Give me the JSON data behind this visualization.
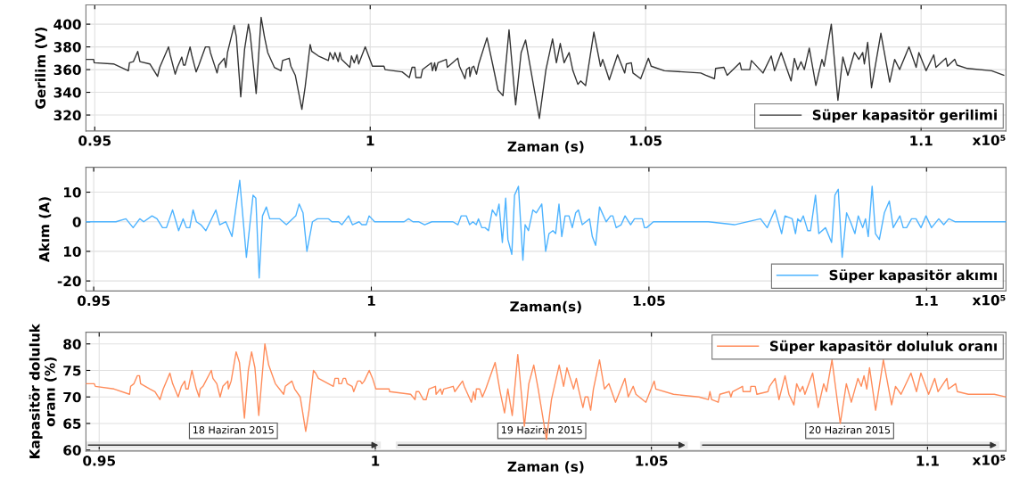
{
  "chart_data": [
    {
      "type": "line",
      "xlabel": "Zaman (s)",
      "ylabel": "Gerilim (V)",
      "xlim": [
        0.9484,
        1.1154
      ],
      "ylim": [
        306,
        417
      ],
      "xticks": [
        0.95,
        1,
        1.05,
        1.1
      ],
      "yticks": [
        320,
        340,
        360,
        380,
        400
      ],
      "grid": true,
      "legend": "bottom right",
      "annotations": [
        "x10⁵"
      ],
      "x": [
        0.9484,
        0.9498,
        0.9499,
        0.9534,
        0.9561,
        0.9563,
        0.957,
        0.9578,
        0.9582,
        0.96,
        0.9614,
        0.9618,
        0.9634,
        0.9637,
        0.9646,
        0.965,
        0.9658,
        0.9661,
        0.9664,
        0.9673,
        0.9676,
        0.9684,
        0.9689,
        0.9701,
        0.9708,
        0.971,
        0.9722,
        0.9725,
        0.9735,
        0.9738,
        0.9741,
        0.9753,
        0.9757,
        0.9765,
        0.9772,
        0.9779,
        0.9782,
        0.9793,
        0.9802,
        0.9808,
        0.9814,
        0.9826,
        0.9838,
        0.9841,
        0.9853,
        0.9856,
        0.9864,
        0.9876,
        0.9882,
        0.9891,
        0.9894,
        0.9906,
        0.9924,
        0.9927,
        0.9933,
        0.9936,
        0.9942,
        0.9945,
        0.9948,
        0.9963,
        0.9966,
        0.9971,
        0.9976,
        0.9979,
        0.9991,
        1.0004,
        1.0025,
        1.0027,
        1.0058,
        1.0071,
        1.0076,
        1.0081,
        1.0083,
        1.0092,
        1.0095,
        1.0111,
        1.0113,
        1.0117,
        1.0119,
        1.0123,
        1.0138,
        1.014,
        1.0159,
        1.0162,
        1.0172,
        1.0175,
        1.018,
        1.0181,
        1.0185,
        1.0188,
        1.0193,
        1.0197,
        1.0212,
        1.0223,
        1.0232,
        1.0241,
        1.0252,
        1.0264,
        1.0274,
        1.0282,
        1.0307,
        1.0319,
        1.0331,
        1.0338,
        1.0345,
        1.0352,
        1.0361,
        1.0368,
        1.0377,
        1.0382,
        1.0391,
        1.0406,
        1.0412,
        1.0418,
        1.0422,
        1.0428,
        1.0434,
        1.0449,
        1.0462,
        1.0465,
        1.0474,
        1.0477,
        1.0491,
        1.0505,
        1.051,
        1.0534,
        1.06,
        1.0609,
        1.0625,
        1.0627,
        1.0642,
        1.0648,
        1.0671,
        1.0674,
        1.0689,
        1.0692,
        1.0713,
        1.0728,
        1.0734,
        1.0746,
        1.0764,
        1.077,
        1.0776,
        1.0782,
        1.0788,
        1.0797,
        1.0809,
        1.082,
        1.0824,
        1.0837,
        1.0849,
        1.0858,
        1.0867,
        1.0879,
        1.0887,
        1.0894,
        1.0897,
        1.0903,
        1.091,
        1.0927,
        1.0943,
        1.0952,
        1.0961,
        1.0978,
        1.0991,
        1.0996,
        1.1009,
        1.1023,
        1.1027,
        1.1045,
        1.1048,
        1.1061,
        1.1065,
        1.1084,
        1.1128,
        1.115
      ],
      "series": [
        {
          "name": "Süper kapasitör gerilimi",
          "color": "#333333",
          "values": [
            369,
            369,
            366,
            365,
            359,
            366,
            367,
            376,
            367,
            365,
            354,
            362,
            380,
            373,
            356,
            362,
            371,
            364,
            364,
            380,
            373,
            358,
            364,
            380,
            380,
            375,
            357,
            364,
            370,
            362,
            375,
            399,
            389,
            336,
            378,
            400,
            392,
            339,
            406,
            389,
            375,
            362,
            359,
            368,
            370,
            363,
            355,
            325,
            345,
            382,
            376,
            372,
            368,
            375,
            369,
            375,
            367,
            375,
            369,
            362,
            372,
            366,
            373,
            365,
            380,
            363,
            363,
            360,
            358,
            353,
            362,
            362,
            353,
            353,
            360,
            366,
            359,
            366,
            359,
            366,
            369,
            362,
            370,
            363,
            352,
            360,
            362,
            354,
            362,
            363,
            356,
            365,
            388,
            363,
            342,
            337,
            395,
            329,
            375,
            386,
            317,
            360,
            387,
            366,
            383,
            366,
            375,
            359,
            347,
            350,
            346,
            393,
            378,
            363,
            369,
            360,
            351,
            373,
            357,
            365,
            366,
            357,
            352,
            370,
            363,
            359,
            357,
            355,
            352,
            361,
            362,
            355,
            366,
            360,
            360,
            368,
            357,
            372,
            359,
            375,
            350,
            370,
            360,
            367,
            360,
            379,
            346,
            369,
            363,
            400,
            333,
            371,
            355,
            375,
            369,
            375,
            365,
            384,
            344,
            392,
            349,
            369,
            360,
            380,
            362,
            375,
            359,
            373,
            362,
            370,
            363,
            369,
            364,
            361,
            359,
            355
          ]
        }
      ]
    },
    {
      "type": "line",
      "xlabel": "Zaman(s)",
      "ylabel": "Akım (A)",
      "xlim": [
        0.9486,
        1.1143
      ],
      "ylim": [
        -23.4,
        18.4
      ],
      "xticks": [
        0.95,
        1,
        1.05,
        1.1
      ],
      "yticks": [
        {
          "value": -20,
          "label": "-20"
        },
        {
          "value": -10,
          "label": "10"
        },
        0,
        10
      ],
      "grid": true,
      "legend": "bottom right",
      "annotations": [
        "x10⁵"
      ],
      "x": [
        0.9486,
        0.9528,
        0.954,
        0.9558,
        0.9571,
        0.9583,
        0.959,
        0.9605,
        0.9614,
        0.9624,
        0.9631,
        0.9642,
        0.9653,
        0.9661,
        0.9667,
        0.9673,
        0.9679,
        0.9685,
        0.9693,
        0.9702,
        0.972,
        0.9727,
        0.9738,
        0.9749,
        0.9763,
        0.9775,
        0.9787,
        0.9792,
        0.9798,
        0.9804,
        0.9811,
        0.9817,
        0.9829,
        0.9835,
        0.9847,
        0.9864,
        0.987,
        0.9877,
        0.9884,
        0.9894,
        0.9903,
        0.9923,
        0.9929,
        0.9941,
        0.9947,
        0.9959,
        0.9966,
        0.9978,
        0.9983,
        0.9991,
        0.9996,
        1.0006,
        1.0059,
        1.0067,
        1.0075,
        1.0085,
        1.0096,
        1.0109,
        1.0147,
        1.0156,
        1.0162,
        1.0171,
        1.0177,
        1.0183,
        1.0189,
        1.0193,
        1.0199,
        1.0205,
        1.0211,
        1.0218,
        1.0225,
        1.023,
        1.0236,
        1.0242,
        1.0246,
        1.0253,
        1.0258,
        1.0265,
        1.0273,
        1.0277,
        1.0283,
        1.0291,
        1.0297,
        1.0307,
        1.0314,
        1.032,
        1.0327,
        1.0332,
        1.0338,
        1.0343,
        1.0349,
        1.0356,
        1.0362,
        1.0368,
        1.0373,
        1.038,
        1.0393,
        1.0398,
        1.0404,
        1.0411,
        1.0423,
        1.0431,
        1.0435,
        1.0441,
        1.045,
        1.0457,
        1.0467,
        1.0474,
        1.0488,
        1.0492,
        1.0496,
        1.0508,
        1.0537,
        1.0596,
        1.0607,
        1.0654,
        1.0701,
        1.0713,
        1.0727,
        1.0739,
        1.0745,
        1.0758,
        1.0764,
        1.0768,
        1.0773,
        1.0778,
        1.0786,
        1.0791,
        1.08,
        1.0806,
        1.0818,
        1.0829,
        1.0835,
        1.0841,
        1.0848,
        1.0856,
        1.0863,
        1.0871,
        1.0877,
        1.0885,
        1.089,
        1.0895,
        1.0902,
        1.0908,
        1.0915,
        1.0924,
        1.0933,
        1.094,
        1.0952,
        1.0958,
        1.0964,
        1.0973,
        1.0981,
        1.099,
        1.0999,
        1.1009,
        1.1022,
        1.1031,
        1.104,
        1.1051,
        1.1063,
        1.1092,
        1.1121,
        1.113,
        1.1143
      ],
      "series": [
        {
          "name": "Süper kapasitör akımı",
          "color": "#4db3ff",
          "values": [
            0,
            0,
            0,
            1,
            -2,
            1,
            0,
            2,
            1,
            -2,
            -2,
            4,
            -3,
            1,
            -2,
            -2,
            4,
            0,
            -1,
            -3,
            4,
            -1,
            0,
            -5,
            14,
            -12,
            9,
            8,
            -19,
            2,
            5,
            1,
            1,
            1,
            -1,
            2,
            6,
            3,
            -10,
            0,
            1,
            1,
            0,
            0,
            -1,
            2,
            -1,
            0,
            -1,
            -1,
            2,
            0,
            0,
            1,
            0,
            0,
            -1,
            0,
            0,
            -1,
            2,
            2,
            -1,
            0,
            -1,
            1,
            -2,
            -2,
            -3,
            4,
            2,
            6,
            -7,
            8,
            -6,
            -11,
            9,
            12,
            -13,
            -1,
            -3,
            4,
            3,
            6,
            -10,
            -4,
            -3,
            -4,
            6,
            -5,
            2,
            2,
            -2,
            3,
            4,
            -1,
            1,
            -5,
            -8,
            5,
            0,
            2,
            2,
            -2,
            -1,
            2,
            -1,
            1,
            1,
            -2,
            -2,
            0,
            0,
            0,
            0,
            -1,
            1,
            -2,
            4,
            -4,
            2,
            1,
            -4,
            1,
            0,
            2,
            -3,
            -3,
            9,
            -4,
            -2,
            -7,
            9,
            11,
            -12,
            3,
            0,
            -4,
            2,
            -2,
            1,
            -5,
            12,
            -4,
            -6,
            3,
            7,
            -2,
            2,
            -2,
            -2,
            1,
            1,
            -2,
            2,
            -2,
            1,
            -1,
            1,
            0,
            0,
            0,
            0,
            0,
            0
          ]
        }
      ]
    },
    {
      "type": "line",
      "xlabel": "Zaman (s)",
      "ylabel": "Kapasitör doluluk\noranı (%)",
      "xlim": [
        0.9476,
        1.1142
      ],
      "ylim": [
        59.8,
        82.2
      ],
      "xticks": [
        0.95,
        1,
        1.05,
        1.1
      ],
      "yticks": [
        60,
        65,
        70,
        75,
        80
      ],
      "grid": true,
      "legend": "top right",
      "annotations": [
        "x10⁵"
      ],
      "bands": [
        {
          "axis": "x",
          "from": 0.9476,
          "to": 1.001,
          "label": "18 Haziran 2015",
          "color": "#333333"
        },
        {
          "axis": "x",
          "from": 1.0037,
          "to": 1.0566,
          "label": "19 Haziran 2015",
          "color": "#333333"
        },
        {
          "axis": "x",
          "from": 1.0588,
          "to": 1.113,
          "label": "20 Haziran 2015",
          "color": "#333333"
        }
      ],
      "x": [
        0.9476,
        0.9491,
        0.9493,
        0.9527,
        0.9555,
        0.9557,
        0.9563,
        0.9569,
        0.9573,
        0.9575,
        0.9592,
        0.9601,
        0.961,
        0.9616,
        0.9628,
        0.9633,
        0.9643,
        0.9649,
        0.9655,
        0.9657,
        0.9661,
        0.9668,
        0.9676,
        0.9681,
        0.9683,
        0.9688,
        0.9703,
        0.9706,
        0.9713,
        0.9719,
        0.9724,
        0.9733,
        0.9734,
        0.9739,
        0.9748,
        0.9754,
        0.9763,
        0.977,
        0.9776,
        0.9782,
        0.9789,
        0.98,
        0.9807,
        0.9819,
        0.9834,
        0.9837,
        0.9849,
        0.9854,
        0.9864,
        0.9874,
        0.988,
        0.9888,
        0.9892,
        0.9897,
        0.9924,
        0.9927,
        0.9933,
        0.9934,
        0.9939,
        0.9942,
        0.9946,
        0.9949,
        0.9958,
        0.9961,
        0.9968,
        0.9973,
        0.9976,
        0.998,
        0.9989,
        0.9995,
        1.0001,
        1.0007,
        1.0025,
        1.0026,
        1.0064,
        1.0072,
        1.0074,
        1.0079,
        1.0087,
        1.0092,
        1.0097,
        1.0109,
        1.011,
        1.0118,
        1.0121,
        1.0124,
        1.0141,
        1.0144,
        1.0158,
        1.0161,
        1.0174,
        1.0178,
        1.0181,
        1.0183,
        1.0189,
        1.0194,
        1.02,
        1.0217,
        1.0226,
        1.0234,
        1.024,
        1.0248,
        1.0258,
        1.027,
        1.0278,
        1.0287,
        1.0295,
        1.031,
        1.0319,
        1.0333,
        1.0341,
        1.0347,
        1.0353,
        1.0359,
        1.0364,
        1.0368,
        1.0376,
        1.038,
        1.0385,
        1.039,
        1.0395,
        1.0406,
        1.0415,
        1.0423,
        1.0435,
        1.0452,
        1.0458,
        1.0467,
        1.0472,
        1.049,
        1.0505,
        1.0508,
        1.054,
        1.0586,
        1.0603,
        1.0606,
        1.0609,
        1.0621,
        1.0624,
        1.0641,
        1.0644,
        1.0647,
        1.0665,
        1.0666,
        1.0679,
        1.068,
        1.0688,
        1.0691,
        1.0711,
        1.0714,
        1.0724,
        1.0731,
        1.0742,
        1.0749,
        1.0758,
        1.0763,
        1.0769,
        1.0774,
        1.0778,
        1.0792,
        1.0802,
        1.0812,
        1.0817,
        1.0827,
        1.0842,
        1.0853,
        1.0862,
        1.0874,
        1.088,
        1.0885,
        1.089,
        1.0895,
        1.0906,
        1.092,
        1.0935,
        1.0942,
        1.0952,
        1.097,
        1.098,
        1.0988,
        1.1002,
        1.1013,
        1.1019,
        1.1035,
        1.1038,
        1.1051,
        1.1054,
        1.1074,
        1.1121,
        1.1142
      ],
      "series": [
        {
          "name": "Süper kapasitör doluluk oranı",
          "color": "#ff8c5a",
          "values": [
            72.5,
            72.5,
            72,
            71.5,
            70.5,
            72,
            72.5,
            74,
            74,
            72.5,
            71.5,
            71,
            69.5,
            71.5,
            74.5,
            72.5,
            70,
            72,
            73,
            71.5,
            71.5,
            75,
            71.5,
            70,
            71.5,
            72,
            75,
            73.5,
            72.5,
            70,
            72,
            73,
            71.5,
            73,
            78.5,
            76.5,
            66,
            75,
            78.5,
            75.5,
            66.5,
            80,
            76,
            72.5,
            70.5,
            72,
            73,
            71.5,
            70,
            63.5,
            67.5,
            75,
            74.5,
            73.5,
            72,
            73.5,
            73.5,
            72.5,
            72.5,
            73.5,
            73.5,
            72.5,
            72,
            71,
            73,
            73,
            72.5,
            73,
            75,
            73.5,
            71.5,
            71.5,
            71.5,
            71,
            70.5,
            69.5,
            71,
            71,
            69.5,
            69.5,
            71.5,
            72,
            70.5,
            71.5,
            70.5,
            71.5,
            72,
            71,
            73,
            72,
            69,
            71,
            69.5,
            71.5,
            71.5,
            70,
            71.5,
            76.5,
            71,
            67,
            71.5,
            66.5,
            78,
            64.5,
            72.5,
            76,
            71.5,
            62,
            69.5,
            76,
            72,
            75.5,
            73.5,
            71.5,
            73.5,
            71.5,
            68,
            70,
            70,
            67.5,
            71.5,
            77,
            71.5,
            72.5,
            69,
            73.5,
            70,
            72,
            70.5,
            69,
            73,
            71.5,
            70.5,
            70,
            69.5,
            71,
            69.5,
            69,
            70.5,
            71,
            70,
            71,
            72,
            71,
            71,
            72,
            72,
            70.5,
            71,
            72,
            73.5,
            69.5,
            74,
            70.5,
            68.5,
            72.5,
            71,
            72,
            70.5,
            74.5,
            68,
            72.5,
            71,
            77,
            65,
            72.5,
            69,
            73.5,
            72,
            74,
            71.5,
            75.5,
            67.5,
            77,
            68.5,
            72,
            70.5,
            74.5,
            71,
            74.5,
            70.5,
            73.5,
            71,
            73.5,
            71.5,
            72.5,
            71,
            70.5,
            70.5,
            70
          ]
        }
      ]
    }
  ]
}
